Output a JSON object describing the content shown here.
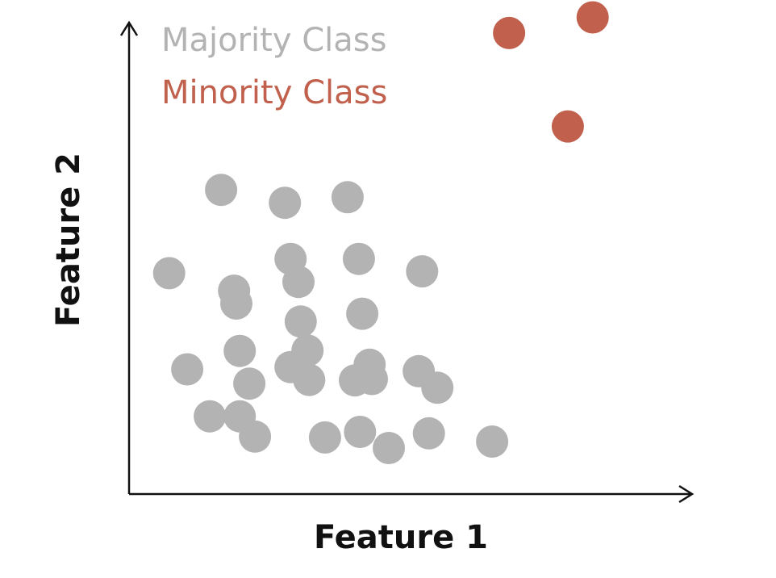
{
  "chart_data": {
    "type": "scatter",
    "xlabel": "Feature 1",
    "ylabel": "Feature 2",
    "xlim": [
      0,
      100
    ],
    "ylim": [
      0,
      100
    ],
    "grid": false,
    "legend_placement": "top-left",
    "series": [
      {
        "name": "Majority Class",
        "color": "#b3b3b3",
        "points": [
          {
            "x": 16.3,
            "y": 66.1
          },
          {
            "x": 27.6,
            "y": 63.3
          },
          {
            "x": 38.7,
            "y": 64.5
          },
          {
            "x": 7.1,
            "y": 48.0
          },
          {
            "x": 18.6,
            "y": 44.2
          },
          {
            "x": 19.0,
            "y": 41.4
          },
          {
            "x": 28.6,
            "y": 51.1
          },
          {
            "x": 30.0,
            "y": 46.1
          },
          {
            "x": 40.7,
            "y": 51.1
          },
          {
            "x": 51.9,
            "y": 48.4
          },
          {
            "x": 30.4,
            "y": 37.5
          },
          {
            "x": 41.3,
            "y": 39.2
          },
          {
            "x": 19.6,
            "y": 31.1
          },
          {
            "x": 31.6,
            "y": 31.2
          },
          {
            "x": 10.3,
            "y": 27.1
          },
          {
            "x": 28.6,
            "y": 27.6
          },
          {
            "x": 31.9,
            "y": 24.8
          },
          {
            "x": 21.3,
            "y": 24.0
          },
          {
            "x": 42.6,
            "y": 28.1
          },
          {
            "x": 40.0,
            "y": 24.7
          },
          {
            "x": 43.0,
            "y": 25.0
          },
          {
            "x": 51.3,
            "y": 26.7
          },
          {
            "x": 54.6,
            "y": 23.1
          },
          {
            "x": 14.3,
            "y": 16.9
          },
          {
            "x": 19.6,
            "y": 16.9
          },
          {
            "x": 22.3,
            "y": 12.5
          },
          {
            "x": 34.7,
            "y": 12.3
          },
          {
            "x": 40.9,
            "y": 13.5
          },
          {
            "x": 46.0,
            "y": 10.0
          },
          {
            "x": 53.1,
            "y": 13.2
          },
          {
            "x": 64.3,
            "y": 11.4
          }
        ]
      },
      {
        "name": "Minority Class",
        "color": "#c0604d",
        "points": [
          {
            "x": 67.3,
            "y": 100.2
          },
          {
            "x": 82.1,
            "y": 103.6
          },
          {
            "x": 77.7,
            "y": 79.9
          }
        ]
      }
    ]
  }
}
